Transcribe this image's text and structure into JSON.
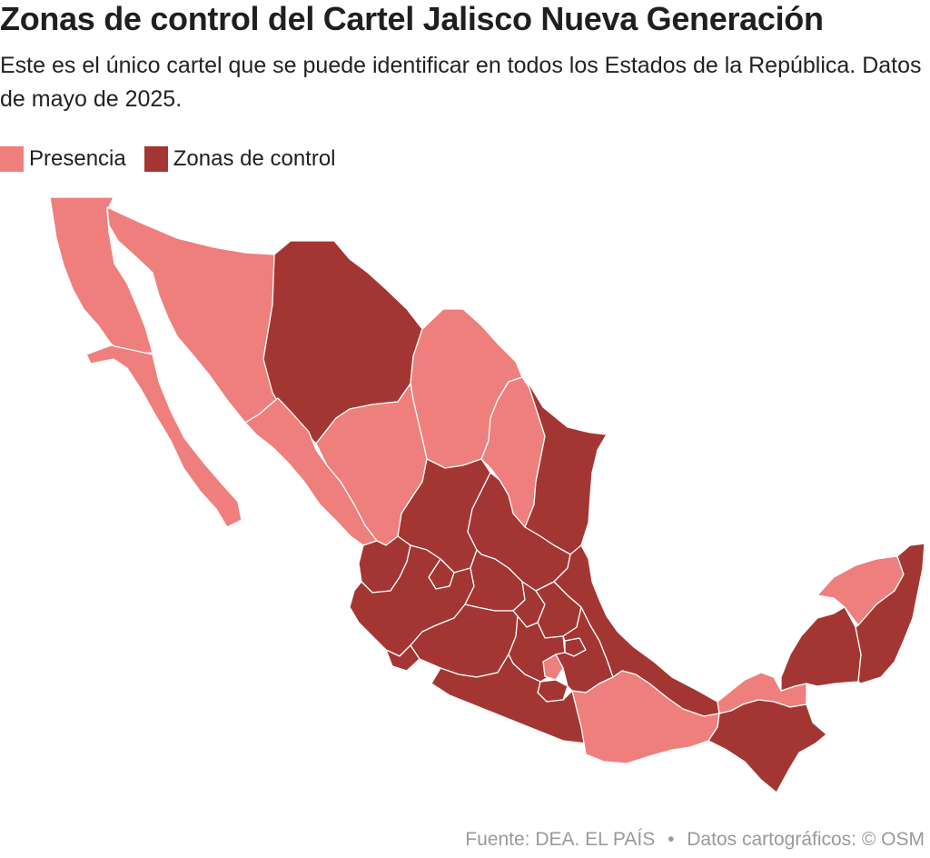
{
  "title": "Zonas de control del Cartel Jalisco Nueva Generación",
  "subtitle": "Este es el único cartel que se puede identificar en todos los Estados de la República. Datos de mayo de 2025.",
  "legend": {
    "items": [
      {
        "label": "Presencia",
        "color": "#ee7f7d"
      },
      {
        "label": "Zonas de control",
        "color": "#a33633"
      }
    ]
  },
  "map": {
    "presence_color": "#ee7f7d",
    "control_color": "#a33633",
    "states": [
      {
        "name": "Baja California",
        "status": "presencia"
      },
      {
        "name": "Baja California Sur",
        "status": "presencia"
      },
      {
        "name": "Sonora",
        "status": "presencia"
      },
      {
        "name": "Chihuahua",
        "status": "control"
      },
      {
        "name": "Coahuila",
        "status": "presencia"
      },
      {
        "name": "Nuevo León",
        "status": "presencia"
      },
      {
        "name": "Tamaulipas",
        "status": "control"
      },
      {
        "name": "Sinaloa",
        "status": "presencia"
      },
      {
        "name": "Durango",
        "status": "presencia"
      },
      {
        "name": "Zacatecas",
        "status": "control"
      },
      {
        "name": "San Luis Potosí",
        "status": "control"
      },
      {
        "name": "Nayarit",
        "status": "control"
      },
      {
        "name": "Jalisco",
        "status": "control"
      },
      {
        "name": "Aguascalientes",
        "status": "control"
      },
      {
        "name": "Guanajuato",
        "status": "control"
      },
      {
        "name": "Querétaro",
        "status": "control"
      },
      {
        "name": "Hidalgo",
        "status": "control"
      },
      {
        "name": "Colima",
        "status": "control"
      },
      {
        "name": "Michoacán",
        "status": "control"
      },
      {
        "name": "Estado de México",
        "status": "control"
      },
      {
        "name": "Ciudad de México",
        "status": "presencia"
      },
      {
        "name": "Morelos",
        "status": "control"
      },
      {
        "name": "Tlaxcala",
        "status": "control"
      },
      {
        "name": "Puebla",
        "status": "control"
      },
      {
        "name": "Veracruz",
        "status": "control"
      },
      {
        "name": "Guerrero",
        "status": "control"
      },
      {
        "name": "Oaxaca",
        "status": "presencia"
      },
      {
        "name": "Tabasco",
        "status": "presencia"
      },
      {
        "name": "Chiapas",
        "status": "control"
      },
      {
        "name": "Campeche",
        "status": "control"
      },
      {
        "name": "Yucatán",
        "status": "presencia"
      },
      {
        "name": "Quintana Roo",
        "status": "control"
      }
    ]
  },
  "source": {
    "left": "Fuente: DEA. EL PAÍS",
    "separator": "•",
    "right": "Datos cartográficos: © OSM"
  }
}
